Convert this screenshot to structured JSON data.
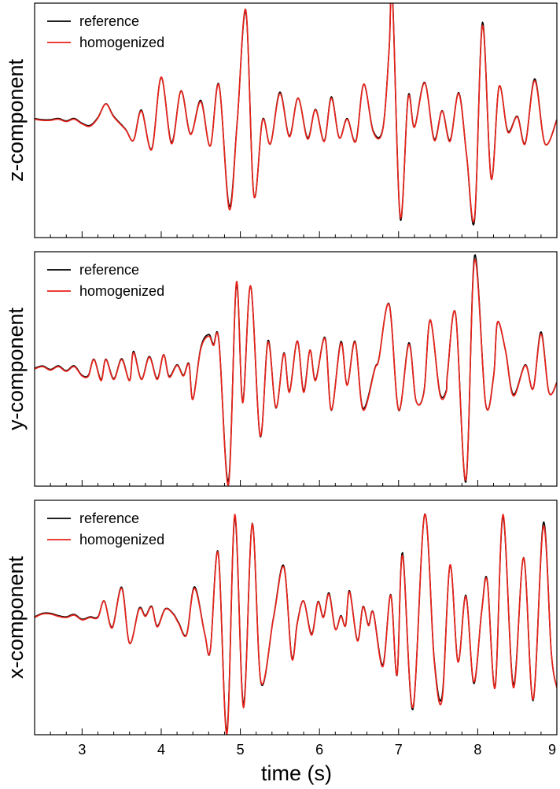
{
  "chart_data": {
    "type": "line",
    "xlabel": "time (s)",
    "xlim": [
      2.4,
      9.0
    ],
    "x_ticks": [
      3,
      4,
      5,
      6,
      7,
      8,
      9
    ],
    "x_minor_step": 0.2,
    "grid": false,
    "legend_position": "top-left",
    "series_styles": [
      {
        "name": "reference",
        "color": "#000000"
      },
      {
        "name": "homogenized",
        "color": "#e8231b"
      }
    ],
    "panels": [
      {
        "ylabel": "z-component",
        "legend": [
          "reference",
          "homogenized"
        ],
        "ylim": [
          -1.0,
          1.0
        ],
        "anchors": [
          [
            2.4,
            0.01
          ],
          [
            2.5,
            0.0
          ],
          [
            2.6,
            0.0
          ],
          [
            2.7,
            0.01
          ],
          [
            2.8,
            -0.01
          ],
          [
            2.9,
            0.01
          ],
          [
            3.0,
            -0.03
          ],
          [
            3.1,
            -0.05
          ],
          [
            3.2,
            0.02
          ],
          [
            3.3,
            0.14
          ],
          [
            3.4,
            0.03
          ],
          [
            3.55,
            -0.08
          ],
          [
            3.65,
            -0.17
          ],
          [
            3.75,
            0.08
          ],
          [
            3.88,
            -0.25
          ],
          [
            4.0,
            0.37
          ],
          [
            4.13,
            -0.2
          ],
          [
            4.25,
            0.25
          ],
          [
            4.37,
            -0.12
          ],
          [
            4.5,
            0.16
          ],
          [
            4.62,
            -0.22
          ],
          [
            4.73,
            0.3
          ],
          [
            4.86,
            -0.76
          ],
          [
            4.96,
            -0.02
          ],
          [
            5.07,
            0.94
          ],
          [
            5.17,
            -0.64
          ],
          [
            5.28,
            0.0
          ],
          [
            5.38,
            -0.2
          ],
          [
            5.5,
            0.23
          ],
          [
            5.62,
            -0.14
          ],
          [
            5.73,
            0.19
          ],
          [
            5.85,
            -0.16
          ],
          [
            5.95,
            0.09
          ],
          [
            6.06,
            -0.18
          ],
          [
            6.15,
            0.19
          ],
          [
            6.25,
            -0.15
          ],
          [
            6.35,
            0.01
          ],
          [
            6.46,
            -0.18
          ],
          [
            6.56,
            0.31
          ],
          [
            6.68,
            -0.1
          ],
          [
            6.8,
            -0.08
          ],
          [
            6.88,
            0.6
          ],
          [
            6.92,
            1.09
          ],
          [
            7.02,
            -0.82
          ],
          [
            7.12,
            0.19
          ],
          [
            7.2,
            -0.06
          ],
          [
            7.33,
            0.32
          ],
          [
            7.45,
            -0.17
          ],
          [
            7.55,
            0.08
          ],
          [
            7.65,
            -0.18
          ],
          [
            7.76,
            0.23
          ],
          [
            7.86,
            -0.3
          ],
          [
            7.96,
            -0.83
          ],
          [
            8.06,
            0.81
          ],
          [
            8.17,
            -0.5
          ],
          [
            8.27,
            0.29
          ],
          [
            8.38,
            -0.1
          ],
          [
            8.5,
            0.03
          ],
          [
            8.6,
            -0.2
          ],
          [
            8.72,
            0.34
          ],
          [
            8.85,
            -0.2
          ],
          [
            9.0,
            0.0
          ]
        ]
      },
      {
        "ylabel": "y-component",
        "legend": [
          "reference",
          "homogenized"
        ],
        "ylim": [
          -1.0,
          1.0
        ],
        "anchors": [
          [
            2.4,
            0.0
          ],
          [
            2.5,
            0.02
          ],
          [
            2.6,
            -0.01
          ],
          [
            2.7,
            0.02
          ],
          [
            2.8,
            -0.02
          ],
          [
            2.9,
            0.02
          ],
          [
            3.0,
            -0.06
          ],
          [
            3.08,
            -0.06
          ],
          [
            3.15,
            0.08
          ],
          [
            3.24,
            -0.1
          ],
          [
            3.3,
            0.08
          ],
          [
            3.4,
            -0.09
          ],
          [
            3.5,
            0.08
          ],
          [
            3.6,
            -0.1
          ],
          [
            3.65,
            0.14
          ],
          [
            3.75,
            -0.09
          ],
          [
            3.85,
            0.1
          ],
          [
            3.95,
            -0.09
          ],
          [
            4.03,
            0.12
          ],
          [
            4.1,
            -0.07
          ],
          [
            4.2,
            0.03
          ],
          [
            4.28,
            -0.06
          ],
          [
            4.35,
            0.04
          ],
          [
            4.4,
            -0.26
          ],
          [
            4.5,
            0.17
          ],
          [
            4.6,
            0.28
          ],
          [
            4.66,
            0.2
          ],
          [
            4.73,
            0.23
          ],
          [
            4.85,
            -0.99
          ],
          [
            4.95,
            0.74
          ],
          [
            5.03,
            -0.29
          ],
          [
            5.13,
            0.71
          ],
          [
            5.25,
            -0.57
          ],
          [
            5.35,
            0.23
          ],
          [
            5.45,
            -0.33
          ],
          [
            5.55,
            0.13
          ],
          [
            5.62,
            -0.2
          ],
          [
            5.72,
            0.24
          ],
          [
            5.8,
            -0.2
          ],
          [
            5.88,
            0.16
          ],
          [
            5.95,
            -0.1
          ],
          [
            6.07,
            0.26
          ],
          [
            6.15,
            -0.35
          ],
          [
            6.27,
            0.22
          ],
          [
            6.35,
            -0.14
          ],
          [
            6.45,
            0.23
          ],
          [
            6.55,
            -0.35
          ],
          [
            6.7,
            0.0
          ],
          [
            6.75,
            0.08
          ],
          [
            6.88,
            0.55
          ],
          [
            7.0,
            -0.35
          ],
          [
            7.13,
            0.21
          ],
          [
            7.22,
            -0.27
          ],
          [
            7.32,
            -0.2
          ],
          [
            7.4,
            0.42
          ],
          [
            7.52,
            -0.21
          ],
          [
            7.6,
            -0.2
          ],
          [
            7.62,
            -0.03
          ],
          [
            7.72,
            0.47
          ],
          [
            7.85,
            -0.95
          ],
          [
            7.96,
            0.93
          ],
          [
            8.1,
            -0.3
          ],
          [
            8.2,
            -0.07
          ],
          [
            8.25,
            0.4
          ],
          [
            8.35,
            0.16
          ],
          [
            8.45,
            -0.23
          ],
          [
            8.6,
            0.03
          ],
          [
            8.7,
            -0.17
          ],
          [
            8.8,
            0.3
          ],
          [
            8.9,
            -0.2
          ],
          [
            9.0,
            -0.12
          ]
        ]
      },
      {
        "ylabel": "x-component",
        "legend": [
          "reference",
          "homogenized"
        ],
        "ylim": [
          -1.0,
          1.0
        ],
        "anchors": [
          [
            2.4,
            0.0
          ],
          [
            2.5,
            0.03
          ],
          [
            2.6,
            0.03
          ],
          [
            2.7,
            0.01
          ],
          [
            2.8,
            0.0
          ],
          [
            2.9,
            0.02
          ],
          [
            3.0,
            -0.02
          ],
          [
            3.1,
            0.0
          ],
          [
            3.2,
            0.0
          ],
          [
            3.28,
            0.14
          ],
          [
            3.38,
            -0.09
          ],
          [
            3.5,
            0.25
          ],
          [
            3.6,
            -0.22
          ],
          [
            3.72,
            0.07
          ],
          [
            3.8,
            0.01
          ],
          [
            3.88,
            0.09
          ],
          [
            3.95,
            -0.08
          ],
          [
            4.05,
            0.07
          ],
          [
            4.15,
            0.03
          ],
          [
            4.22,
            -0.05
          ],
          [
            4.32,
            -0.15
          ],
          [
            4.42,
            0.25
          ],
          [
            4.55,
            -0.14
          ],
          [
            4.62,
            -0.28
          ],
          [
            4.72,
            0.55
          ],
          [
            4.83,
            -1.0
          ],
          [
            4.93,
            0.88
          ],
          [
            5.04,
            -0.77
          ],
          [
            5.15,
            0.8
          ],
          [
            5.26,
            -0.55
          ],
          [
            5.42,
            0.0
          ],
          [
            5.55,
            0.43
          ],
          [
            5.65,
            -0.35
          ],
          [
            5.72,
            -0.05
          ],
          [
            5.8,
            0.14
          ],
          [
            5.9,
            -0.15
          ],
          [
            5.98,
            0.13
          ],
          [
            6.05,
            0.0
          ],
          [
            6.12,
            0.2
          ],
          [
            6.2,
            -0.1
          ],
          [
            6.27,
            0.01
          ],
          [
            6.33,
            -0.07
          ],
          [
            6.38,
            0.22
          ],
          [
            6.48,
            -0.2
          ],
          [
            6.55,
            0.09
          ],
          [
            6.62,
            -0.07
          ],
          [
            6.68,
            0.04
          ],
          [
            6.8,
            -0.42
          ],
          [
            6.9,
            0.19
          ],
          [
            6.98,
            -0.49
          ],
          [
            7.05,
            0.53
          ],
          [
            7.18,
            -0.77
          ],
          [
            7.33,
            0.88
          ],
          [
            7.45,
            -0.37
          ],
          [
            7.55,
            -0.7
          ],
          [
            7.65,
            0.45
          ],
          [
            7.75,
            -0.38
          ],
          [
            7.85,
            0.18
          ],
          [
            7.95,
            -0.55
          ],
          [
            8.05,
            0.05
          ],
          [
            8.12,
            0.31
          ],
          [
            8.22,
            -0.6
          ],
          [
            8.32,
            0.88
          ],
          [
            8.45,
            -0.6
          ],
          [
            8.58,
            0.51
          ],
          [
            8.7,
            -0.7
          ],
          [
            8.83,
            0.78
          ],
          [
            8.93,
            -0.3
          ],
          [
            9.0,
            -0.6
          ]
        ]
      }
    ]
  }
}
